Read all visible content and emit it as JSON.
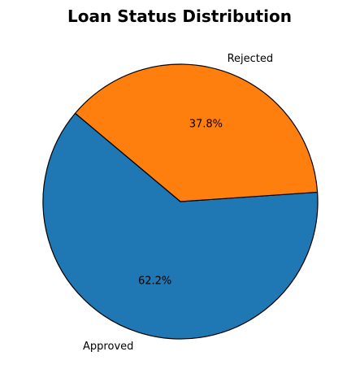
{
  "chart_data": {
    "type": "pie",
    "title": "Loan Status Distribution",
    "labels": [
      "Approved",
      "Rejected"
    ],
    "values": [
      62.2,
      37.8
    ],
    "percent_labels": [
      "62.2%",
      "37.8%"
    ],
    "colors": [
      "#1f77b4",
      "#ff7f0e"
    ],
    "start_angle_deg": 140,
    "direction": "counterclockwise",
    "edge_color": "#000000"
  }
}
